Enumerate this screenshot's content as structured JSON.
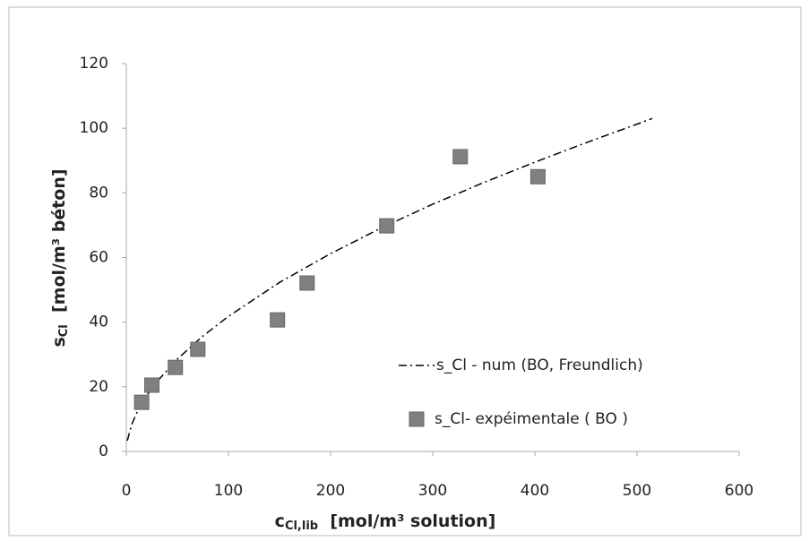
{
  "chart_data": {
    "type": "scatter",
    "xlabel": {
      "main": "c",
      "sub": "Cl,lib",
      "rest": "  [mol/m³ solution]"
    },
    "ylabel": {
      "main": "s",
      "sub": "Cl",
      "rest": "  [mol/m³ béton]"
    },
    "xlim": [
      0,
      600
    ],
    "xticks": [
      0,
      100,
      200,
      300,
      400,
      500,
      600
    ],
    "ylim": [
      0,
      120
    ],
    "yticks": [
      0,
      20,
      40,
      60,
      80,
      100,
      120
    ],
    "grid": false,
    "legend": "right",
    "series": [
      {
        "name": "s_Cl - num (BO, Freundlich)",
        "type": "line",
        "style": "dash-dot",
        "color": "#000000",
        "x": [
          1,
          5,
          10,
          20,
          30,
          50,
          75,
          100,
          150,
          200,
          250,
          300,
          350,
          400,
          450,
          515
        ],
        "values": [
          3.3,
          8.1,
          11.8,
          17.3,
          21.6,
          28.6,
          35.7,
          41.8,
          52.3,
          61.2,
          69.2,
          76.5,
          83.2,
          89.5,
          95.5,
          103
        ]
      },
      {
        "name": "s_Cl- expéimentale ( BO )",
        "type": "scatter",
        "marker": "square",
        "color": "#808080",
        "x": [
          15,
          25,
          48,
          70,
          148,
          177,
          255,
          327,
          403
        ],
        "values": [
          15.2,
          20.5,
          26,
          31.6,
          40.7,
          52.1,
          69.8,
          91.2,
          85
        ]
      }
    ]
  }
}
